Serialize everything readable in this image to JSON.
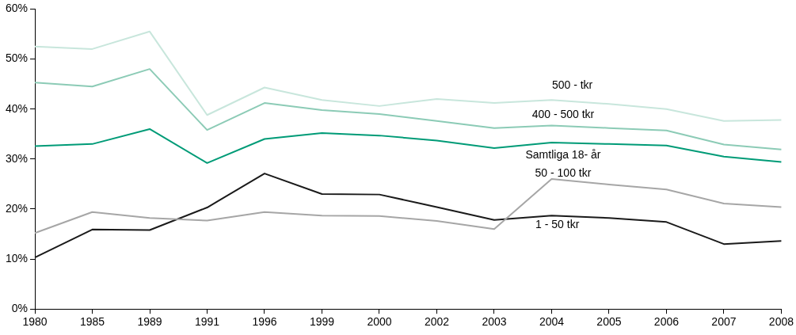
{
  "chart_data": {
    "type": "line",
    "categories": [
      "1980",
      "1985",
      "1989",
      "1991",
      "1996",
      "1999",
      "2000",
      "2002",
      "2003",
      "2004",
      "2005",
      "2006",
      "2007",
      "2008"
    ],
    "ylim": [
      0,
      60
    ],
    "yticks": [
      {
        "value": 0,
        "label": "0%"
      },
      {
        "value": 10,
        "label": "10%"
      },
      {
        "value": 20,
        "label": "20%"
      },
      {
        "value": 30,
        "label": "30%"
      },
      {
        "value": 40,
        "label": "40%"
      },
      {
        "value": 50,
        "label": "50%"
      },
      {
        "value": 60,
        "label": "60%"
      }
    ],
    "grid": false,
    "legend": false,
    "marker": "none",
    "line_style": "solid",
    "series": [
      {
        "name": "500 - tkr",
        "color": "#c8e6dc",
        "values": [
          52.5,
          52,
          55.5,
          38.8,
          44.3,
          41.8,
          40.6,
          42,
          41.2,
          41.8,
          41,
          40,
          37.6,
          37.8
        ]
      },
      {
        "name": "400 - 500 tkr",
        "color": "#8ccbb6",
        "values": [
          45.3,
          44.5,
          48,
          35.8,
          41.2,
          39.8,
          39,
          37.6,
          36.2,
          36.7,
          36.2,
          35.7,
          32.9,
          31.9
        ]
      },
      {
        "name": "Samtliga 18- år",
        "color": "#009b77",
        "values": [
          32.6,
          33,
          36,
          29.2,
          34,
          35.2,
          34.7,
          33.7,
          32.2,
          33.3,
          33,
          32.7,
          30.5,
          29.4
        ]
      },
      {
        "name": "50 - 100 tkr",
        "color": "#a6a6a6",
        "values": [
          15.2,
          19.4,
          18.2,
          17.7,
          19.4,
          18.7,
          18.6,
          17.6,
          16,
          26,
          24.9,
          23.9,
          21.1,
          20.4
        ]
      },
      {
        "name": "1 - 50 tkr",
        "color": "#1a1a1a",
        "values": [
          10.3,
          15.9,
          15.8,
          20.3,
          27.1,
          23,
          22.9,
          20.4,
          17.8,
          18.7,
          18.2,
          17.4,
          13,
          13.6
        ]
      }
    ]
  }
}
